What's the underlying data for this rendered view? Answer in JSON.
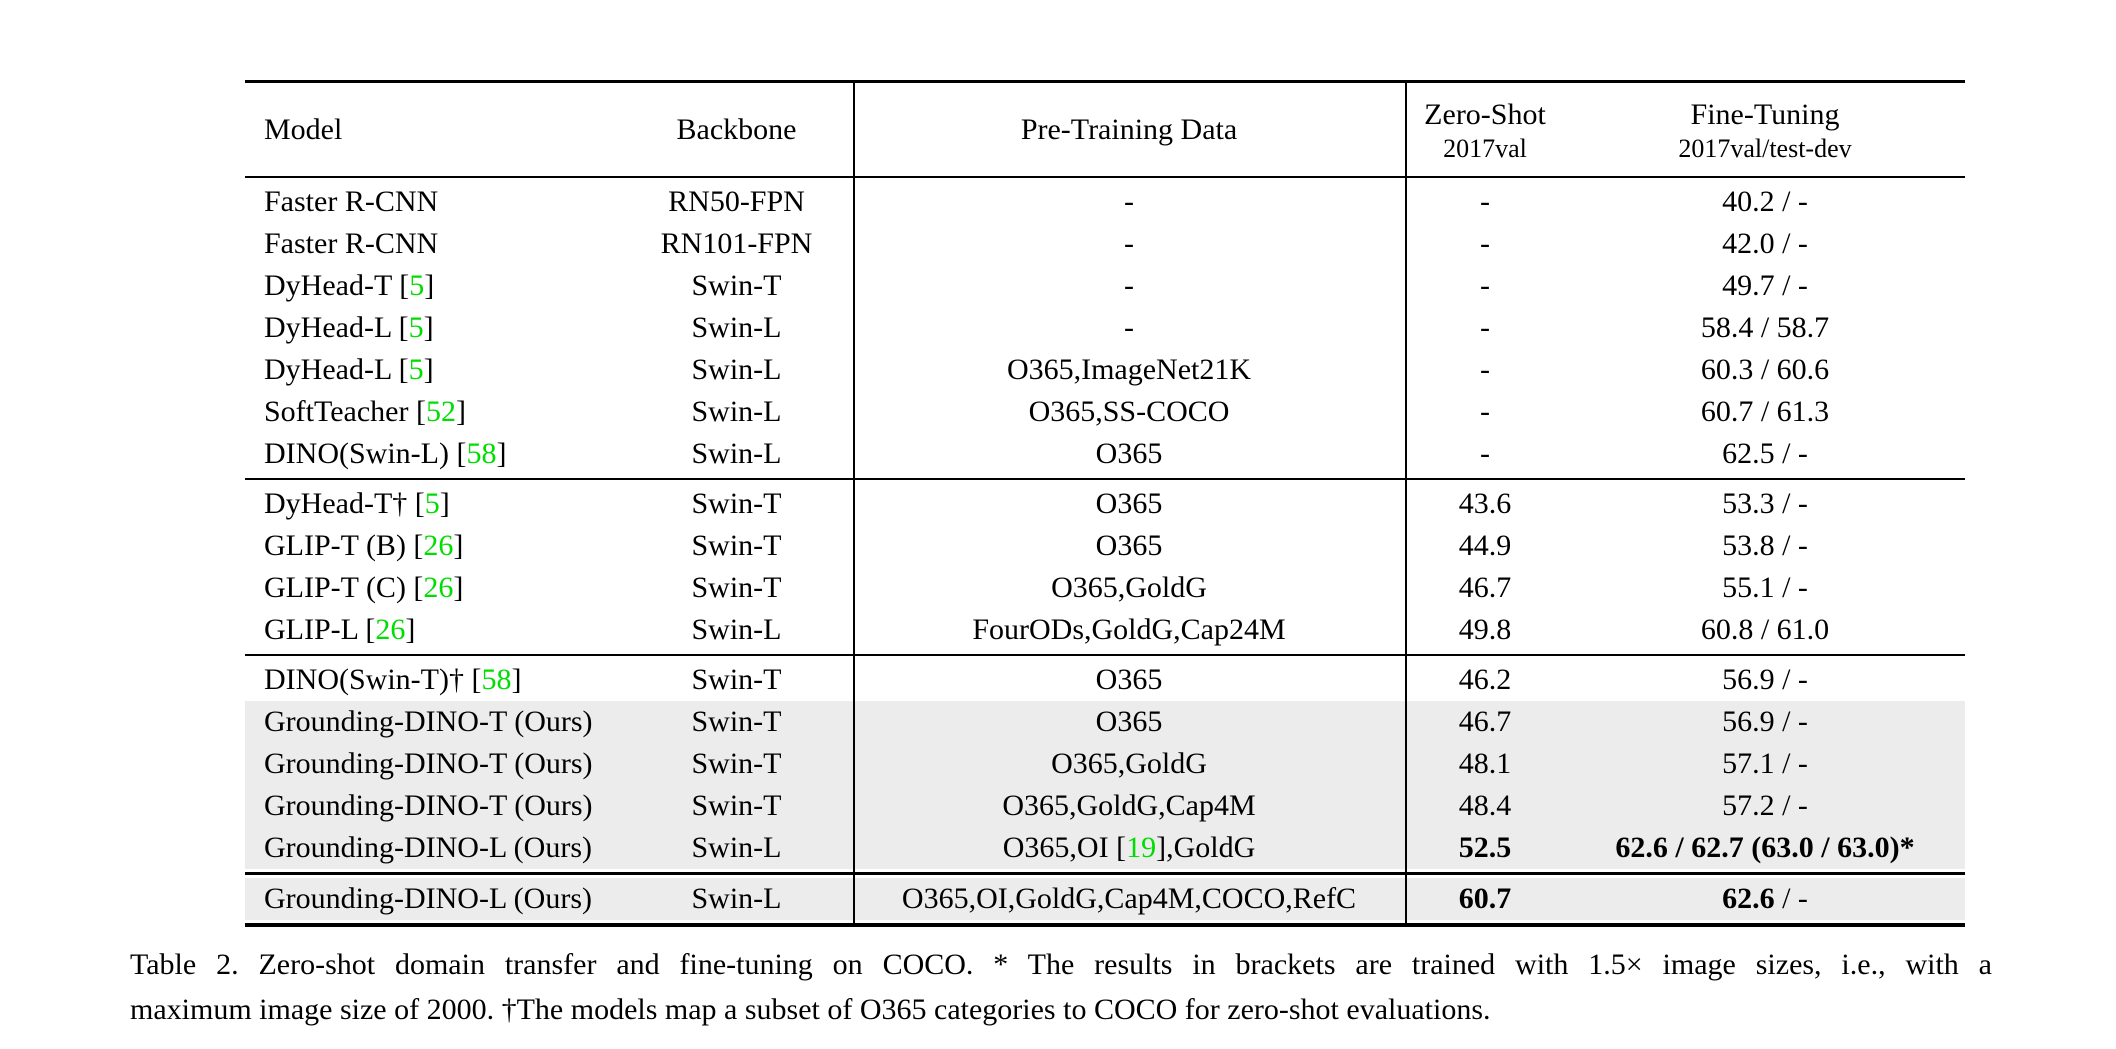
{
  "table": {
    "headers": {
      "model": "Model",
      "backbone": "Backbone",
      "pretrain": "Pre-Training Data",
      "zeroshot_line1": "Zero-Shot",
      "zeroshot_line2": "2017val",
      "finetune_line1": "Fine-Tuning",
      "finetune_line2": "2017val/test-dev"
    },
    "colors": {
      "citation_green": "#00dd00",
      "row_highlight": "#ececec"
    },
    "group_separators": [
      "thin",
      "thin",
      "thick"
    ],
    "groups": [
      {
        "rows": [
          {
            "model": [
              {
                "t": "Faster R-CNN"
              }
            ],
            "backbone": "RN50-FPN",
            "pretrain": [
              {
                "t": "-"
              }
            ],
            "zs": {
              "t": "-"
            },
            "ft": [
              {
                "t": "40.2 / -"
              }
            ]
          },
          {
            "model": [
              {
                "t": "Faster R-CNN"
              }
            ],
            "backbone": "RN101-FPN",
            "pretrain": [
              {
                "t": "-"
              }
            ],
            "zs": {
              "t": "-"
            },
            "ft": [
              {
                "t": "42.0 / -"
              }
            ]
          },
          {
            "model": [
              {
                "t": "DyHead-T ["
              },
              {
                "t": "5",
                "g": true
              },
              {
                "t": "]"
              }
            ],
            "backbone": "Swin-T",
            "pretrain": [
              {
                "t": "-"
              }
            ],
            "zs": {
              "t": "-"
            },
            "ft": [
              {
                "t": "49.7 / -"
              }
            ]
          },
          {
            "model": [
              {
                "t": "DyHead-L ["
              },
              {
                "t": "5",
                "g": true
              },
              {
                "t": "]"
              }
            ],
            "backbone": "Swin-L",
            "pretrain": [
              {
                "t": "-"
              }
            ],
            "zs": {
              "t": "-"
            },
            "ft": [
              {
                "t": "58.4 / 58.7"
              }
            ]
          },
          {
            "model": [
              {
                "t": "DyHead-L ["
              },
              {
                "t": "5",
                "g": true
              },
              {
                "t": "]"
              }
            ],
            "backbone": "Swin-L",
            "pretrain": [
              {
                "t": "O365,ImageNet21K"
              }
            ],
            "zs": {
              "t": "-"
            },
            "ft": [
              {
                "t": "60.3 / 60.6"
              }
            ]
          },
          {
            "model": [
              {
                "t": "SoftTeacher ["
              },
              {
                "t": "52",
                "g": true
              },
              {
                "t": "]"
              }
            ],
            "backbone": "Swin-L",
            "pretrain": [
              {
                "t": "O365,SS-COCO"
              }
            ],
            "zs": {
              "t": "-"
            },
            "ft": [
              {
                "t": "60.7 / 61.3"
              }
            ]
          },
          {
            "model": [
              {
                "t": "DINO(Swin-L) ["
              },
              {
                "t": "58",
                "g": true
              },
              {
                "t": "]"
              }
            ],
            "backbone": "Swin-L",
            "pretrain": [
              {
                "t": "O365"
              }
            ],
            "zs": {
              "t": "-"
            },
            "ft": [
              {
                "t": "62.5 / -"
              }
            ]
          }
        ]
      },
      {
        "rows": [
          {
            "model": [
              {
                "t": "DyHead-T† ["
              },
              {
                "t": "5",
                "g": true
              },
              {
                "t": "]"
              }
            ],
            "backbone": "Swin-T",
            "pretrain": [
              {
                "t": "O365"
              }
            ],
            "zs": {
              "t": "43.6"
            },
            "ft": [
              {
                "t": "53.3 / -"
              }
            ]
          },
          {
            "model": [
              {
                "t": "GLIP-T (B) ["
              },
              {
                "t": "26",
                "g": true
              },
              {
                "t": "]"
              }
            ],
            "backbone": "Swin-T",
            "pretrain": [
              {
                "t": "O365"
              }
            ],
            "zs": {
              "t": "44.9"
            },
            "ft": [
              {
                "t": "53.8 / -"
              }
            ]
          },
          {
            "model": [
              {
                "t": "GLIP-T (C) ["
              },
              {
                "t": "26",
                "g": true
              },
              {
                "t": "]"
              }
            ],
            "backbone": "Swin-T",
            "pretrain": [
              {
                "t": "O365,GoldG"
              }
            ],
            "zs": {
              "t": "46.7"
            },
            "ft": [
              {
                "t": "55.1 / -"
              }
            ]
          },
          {
            "model": [
              {
                "t": "GLIP-L ["
              },
              {
                "t": "26",
                "g": true
              },
              {
                "t": "]"
              }
            ],
            "backbone": "Swin-L",
            "pretrain": [
              {
                "t": "FourODs,GoldG,Cap24M"
              }
            ],
            "zs": {
              "t": "49.8"
            },
            "ft": [
              {
                "t": "60.8 / 61.0"
              }
            ]
          }
        ]
      },
      {
        "rows": [
          {
            "model": [
              {
                "t": "DINO(Swin-T)† ["
              },
              {
                "t": "58",
                "g": true
              },
              {
                "t": "]"
              }
            ],
            "backbone": "Swin-T",
            "pretrain": [
              {
                "t": "O365"
              }
            ],
            "zs": {
              "t": "46.2"
            },
            "ft": [
              {
                "t": "56.9 / -"
              }
            ]
          },
          {
            "hl": true,
            "model": [
              {
                "t": "Grounding-DINO-T (Ours)"
              }
            ],
            "backbone": "Swin-T",
            "pretrain": [
              {
                "t": "O365"
              }
            ],
            "zs": {
              "t": "46.7"
            },
            "ft": [
              {
                "t": "56.9 / -"
              }
            ]
          },
          {
            "hl": true,
            "model": [
              {
                "t": "Grounding-DINO-T (Ours)"
              }
            ],
            "backbone": "Swin-T",
            "pretrain": [
              {
                "t": "O365,GoldG"
              }
            ],
            "zs": {
              "t": "48.1"
            },
            "ft": [
              {
                "t": "57.1 / -"
              }
            ]
          },
          {
            "hl": true,
            "model": [
              {
                "t": "Grounding-DINO-T (Ours)"
              }
            ],
            "backbone": "Swin-T",
            "pretrain": [
              {
                "t": "O365,GoldG,Cap4M"
              }
            ],
            "zs": {
              "t": "48.4"
            },
            "ft": [
              {
                "t": "57.2 / -"
              }
            ]
          },
          {
            "hl": true,
            "model": [
              {
                "t": "Grounding-DINO-L (Ours)"
              }
            ],
            "backbone": "Swin-L",
            "pretrain": [
              {
                "t": "O365,OI ["
              },
              {
                "t": "19",
                "g": true
              },
              {
                "t": "],GoldG"
              }
            ],
            "zs": {
              "t": "52.5",
              "b": true
            },
            "ft": [
              {
                "t": "62.6 / 62.7 (63.0 / 63.0)*",
                "b": true
              }
            ]
          }
        ]
      },
      {
        "rows": [
          {
            "hl": true,
            "model": [
              {
                "t": "Grounding-DINO-L (Ours)"
              }
            ],
            "backbone": "Swin-L",
            "pretrain": [
              {
                "t": "O365,OI,GoldG,Cap4M,COCO,RefC"
              }
            ],
            "zs": {
              "t": "60.7",
              "b": true
            },
            "ft": [
              {
                "t": "62.6",
                "b": true
              },
              {
                "t": " / -"
              }
            ]
          }
        ]
      }
    ]
  },
  "caption": {
    "line1": "Table 2.  Zero-shot domain transfer and fine-tuning on COCO. * The results in brackets are trained with 1.5× image sizes, i.e., with a",
    "line2": "maximum image size of 2000. †The models map a subset of O365 categories to COCO for zero-shot evaluations."
  }
}
